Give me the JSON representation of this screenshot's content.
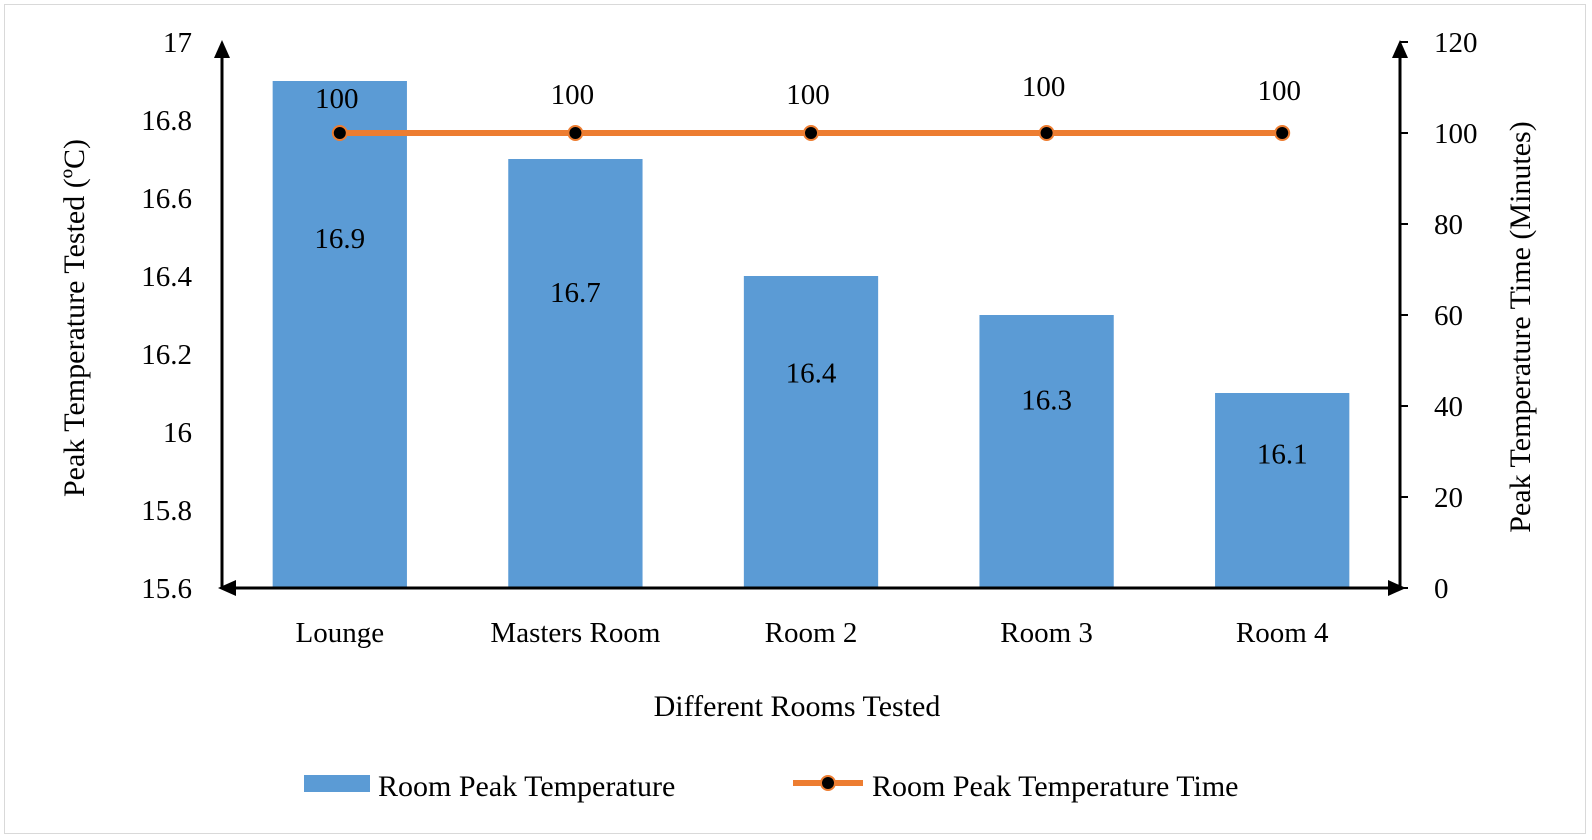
{
  "chart_data": {
    "type": "bar",
    "categories": [
      "Lounge",
      "Masters Room",
      "Room 2",
      "Room 3",
      "Room 4"
    ],
    "series": [
      {
        "name": "Room Peak Temperature",
        "type": "bar",
        "axis": "left",
        "color": "#5b9bd5",
        "values": [
          16.9,
          16.7,
          16.4,
          16.3,
          16.1
        ],
        "labels": [
          "16.9",
          "16.7",
          "16.4",
          "16.3",
          "16.1"
        ]
      },
      {
        "name": "Room Peak Temperature Time",
        "type": "line",
        "axis": "right",
        "color": "#ed7d31",
        "marker_color": "#000000",
        "values": [
          100,
          100,
          100,
          100,
          100
        ],
        "labels": [
          "100",
          "100",
          "100",
          "100",
          "100"
        ]
      }
    ],
    "xlabel": "Different Rooms Tested",
    "ylabel": "Peak Temperature Tested (ºC)",
    "y2label": "Peak Temperature Time (Minutes)",
    "ylim": [
      15.6,
      17
    ],
    "y2lim": [
      0,
      120
    ],
    "yticks": [
      "15.6",
      "15.8",
      "16",
      "16.2",
      "16.4",
      "16.6",
      "16.8",
      "17"
    ],
    "y2ticks": [
      "0",
      "20",
      "40",
      "60",
      "80",
      "100",
      "120"
    ],
    "grid": false,
    "legend": "bottom"
  }
}
